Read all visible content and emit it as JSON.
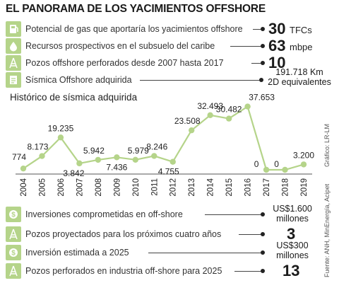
{
  "title": "EL PANORAMA DE LOS YACIMIENTOS OFFSHORE",
  "top_stats": [
    {
      "label": "Potencial de gas que aportaría los yacimientos offshore",
      "value": "30",
      "unit": "TFCs",
      "icon": "gas-icon"
    },
    {
      "label": "Recursos prospectivos en el subsuelo del caribe",
      "value": "63",
      "unit": "mbpe",
      "icon": "oil-drop-icon"
    },
    {
      "label": "Pozos offshore perforados desde 2007 hasta 2017",
      "value": "10",
      "unit": "",
      "icon": "oil-rig-icon"
    },
    {
      "label": "Sísmica Offshore adquirida",
      "value_line1": "191.718 Km",
      "value_line2": "2D equivalentes",
      "icon": "document-icon"
    }
  ],
  "chart_data": {
    "type": "line",
    "title": "Histórico de sísmica adquirida",
    "x": [
      "2004",
      "2005",
      "2006",
      "2007",
      "2008",
      "2009",
      "2010",
      "2011",
      "2012",
      "2013",
      "2014",
      "2015",
      "2016",
      "2017",
      "2018",
      "2019"
    ],
    "values": [
      774,
      8173,
      19235,
      3842,
      5942,
      7436,
      5979,
      8246,
      4755,
      23508,
      32493,
      30482,
      37653,
      0,
      0,
      3200
    ],
    "data_labels": [
      "774",
      "8.173",
      "19.235",
      "3.842",
      "5.942",
      "7.436",
      "5.979",
      "8.246",
      "4.755",
      "23.508",
      "32.493",
      "30.482",
      "37.653",
      "0",
      "0",
      "3.200"
    ],
    "ylim": [
      0,
      40000
    ],
    "grid": false,
    "line_color": "#b5d48a",
    "point_color": "#b5d48a"
  },
  "bottom_stats": [
    {
      "label": "Inversiones comprometidas en off-shore",
      "value_line1": "US$1.600",
      "value_line2": "millones",
      "icon": "coin-icon"
    },
    {
      "label": "Pozos proyectados para los próximos cuatro años",
      "value": "3",
      "icon": "oil-rig-icon"
    },
    {
      "label": "Inversión estimada a 2025",
      "value_line1": "US$300",
      "value_line2": "millones",
      "icon": "coin-icon"
    },
    {
      "label": "Pozos perforados en industria off-shore para 2025",
      "value": "13",
      "icon": "oil-rig-icon"
    }
  ],
  "credit": "Gráfico: LR-LM",
  "source": "Fuente: ANH, MinEnergía, Acipet",
  "colors": {
    "accent": "#b5d48a",
    "text": "#222222"
  }
}
